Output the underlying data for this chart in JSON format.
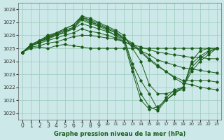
{
  "xlabel": "Graphe pression niveau de la mer (hPa)",
  "bg_color": "#cce8e8",
  "grid_color": "#99ccbb",
  "line_color": "#1a5c1a",
  "ylim": [
    1019.5,
    1028.5
  ],
  "xlim": [
    -0.5,
    23.5
  ],
  "yticks": [
    1020,
    1021,
    1022,
    1023,
    1024,
    1025,
    1026,
    1027,
    1028
  ],
  "xticks": [
    0,
    1,
    2,
    3,
    4,
    5,
    6,
    7,
    8,
    9,
    10,
    11,
    12,
    13,
    14,
    15,
    16,
    17,
    18,
    19,
    20,
    21,
    22,
    23
  ],
  "series": [
    [
      1024.7,
      1025.0,
      1025.1,
      1025.0,
      1025.2,
      1025.3,
      1025.2,
      1025.1,
      1025.0,
      1025.0,
      1025.0,
      1025.0,
      1025.0,
      1025.0,
      1025.0,
      1025.0,
      1025.0,
      1025.0,
      1025.0,
      1025.0,
      1025.0,
      1025.0,
      1025.0,
      1025.0
    ],
    [
      1024.7,
      1025.1,
      1025.2,
      1025.4,
      1025.5,
      1025.7,
      1025.9,
      1026.0,
      1026.0,
      1025.9,
      1025.8,
      1025.7,
      1025.5,
      1025.3,
      1025.1,
      1024.9,
      1024.7,
      1024.6,
      1024.5,
      1024.4,
      1024.3,
      1024.3,
      1024.2,
      1024.2
    ],
    [
      1024.7,
      1025.2,
      1025.4,
      1025.6,
      1025.8,
      1026.0,
      1026.2,
      1026.5,
      1026.3,
      1026.2,
      1026.0,
      1025.8,
      1025.5,
      1025.2,
      1024.8,
      1024.5,
      1024.1,
      1023.9,
      1023.7,
      1023.5,
      1023.4,
      1023.3,
      1023.2,
      1023.1
    ],
    [
      1024.7,
      1025.2,
      1025.5,
      1025.7,
      1026.0,
      1026.2,
      1026.5,
      1026.9,
      1026.7,
      1026.5,
      1026.3,
      1026.0,
      1025.7,
      1025.3,
      1024.7,
      1024.1,
      1023.6,
      1023.2,
      1022.8,
      1022.5,
      1022.5,
      1022.5,
      1022.5,
      1022.4
    ],
    [
      1024.7,
      1025.2,
      1025.5,
      1025.8,
      1026.1,
      1026.4,
      1026.6,
      1027.4,
      1027.1,
      1026.8,
      1026.5,
      1026.2,
      1025.8,
      1025.4,
      1024.8,
      1024.2,
      1023.7,
      1023.2,
      1022.7,
      1022.3,
      1022.2,
      1022.0,
      1021.9,
      1021.8
    ],
    [
      1024.7,
      1025.3,
      1025.6,
      1025.9,
      1026.2,
      1026.5,
      1026.8,
      1027.5,
      1027.3,
      1027.0,
      1026.7,
      1026.4,
      1026.0,
      1025.0,
      1024.0,
      1022.2,
      1021.5,
      1021.5,
      1021.7,
      1021.8,
      1024.0,
      1024.8,
      1025.0,
      1025.0
    ],
    [
      1024.7,
      1025.3,
      1025.6,
      1026.0,
      1026.2,
      1026.5,
      1026.8,
      1027.4,
      1027.2,
      1026.9,
      1026.6,
      1026.3,
      1025.8,
      1023.8,
      1022.5,
      1021.5,
      1020.3,
      1021.2,
      1021.8,
      1022.0,
      1023.8,
      1024.4,
      1024.8,
      1025.0
    ],
    [
      1024.7,
      1025.2,
      1025.5,
      1025.9,
      1026.1,
      1026.4,
      1026.6,
      1027.3,
      1027.0,
      1026.8,
      1026.5,
      1026.2,
      1025.7,
      1023.5,
      1021.5,
      1020.5,
      1020.2,
      1021.0,
      1021.6,
      1022.0,
      1023.5,
      1024.2,
      1024.7,
      1025.0
    ],
    [
      1024.7,
      1025.2,
      1025.5,
      1025.8,
      1026.0,
      1026.3,
      1026.5,
      1027.2,
      1026.9,
      1026.7,
      1026.4,
      1026.0,
      1025.5,
      1023.2,
      1021.0,
      1020.3,
      1020.5,
      1021.0,
      1021.5,
      1022.0,
      1023.2,
      1024.0,
      1024.5,
      1025.0
    ]
  ]
}
